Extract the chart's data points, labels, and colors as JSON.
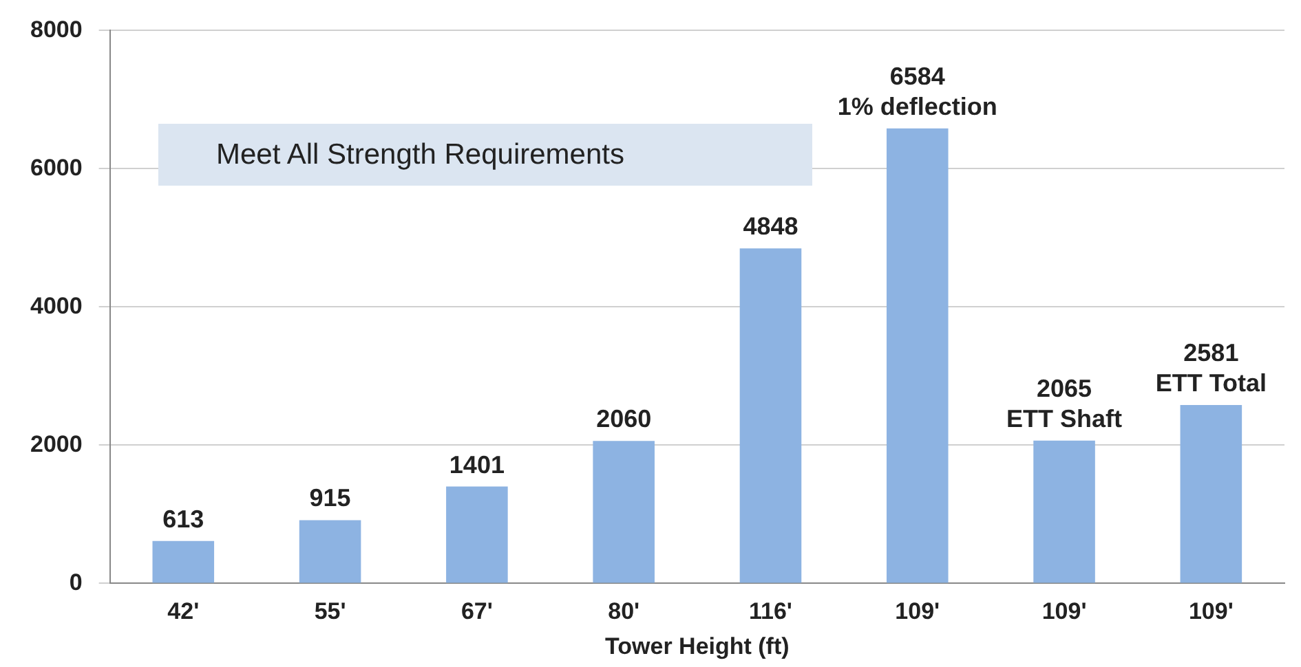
{
  "chart_data": {
    "type": "bar",
    "xlabel": "Tower Height (ft)",
    "categories": [
      "42'",
      "55'",
      "67'",
      "80'",
      "116'",
      "109'",
      "109'",
      "109'"
    ],
    "values": [
      613,
      915,
      1401,
      2060,
      4848,
      6584,
      2065,
      2581
    ],
    "value_labels": [
      "613",
      "915",
      "1401",
      "2060",
      "4848",
      "6584\n1% deflection",
      "2065\nETT Shaft",
      "2581\nETT Total"
    ],
    "color": "#8db3e2",
    "ylim": [
      0,
      8000
    ],
    "yticks": [
      0,
      2000,
      4000,
      6000,
      8000
    ],
    "grid": "y",
    "legend": false,
    "annotations": [
      "Meet All Strength Requirements"
    ]
  }
}
